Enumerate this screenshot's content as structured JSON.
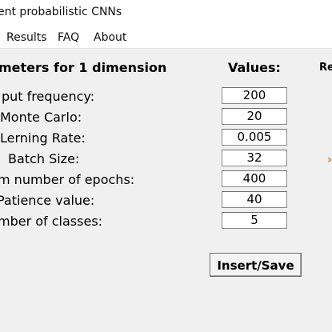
{
  "window": {
    "title": "ent probabilistic CNNs"
  },
  "menu": {
    "items": [
      "Results",
      "FAQ",
      "About"
    ]
  },
  "form": {
    "params_header": "meters for 1 dimension",
    "values_header": "Values:",
    "right_header_partial": "Re",
    "rows": [
      {
        "label": "put frequency:",
        "value": "200"
      },
      {
        "label": " Monte Carlo:",
        "value": "20"
      },
      {
        "label": " Lerning Rate:",
        "value": "0.005"
      },
      {
        "label": "Batch Size:",
        "value": "32"
      },
      {
        "label": "m number of epochs:",
        "value": "400"
      },
      {
        "label": "Patience value:",
        "value": "40"
      },
      {
        "label": "mber of classes:",
        "value": "5"
      }
    ],
    "side_mark": "›",
    "button_label": "Insert/Save"
  }
}
